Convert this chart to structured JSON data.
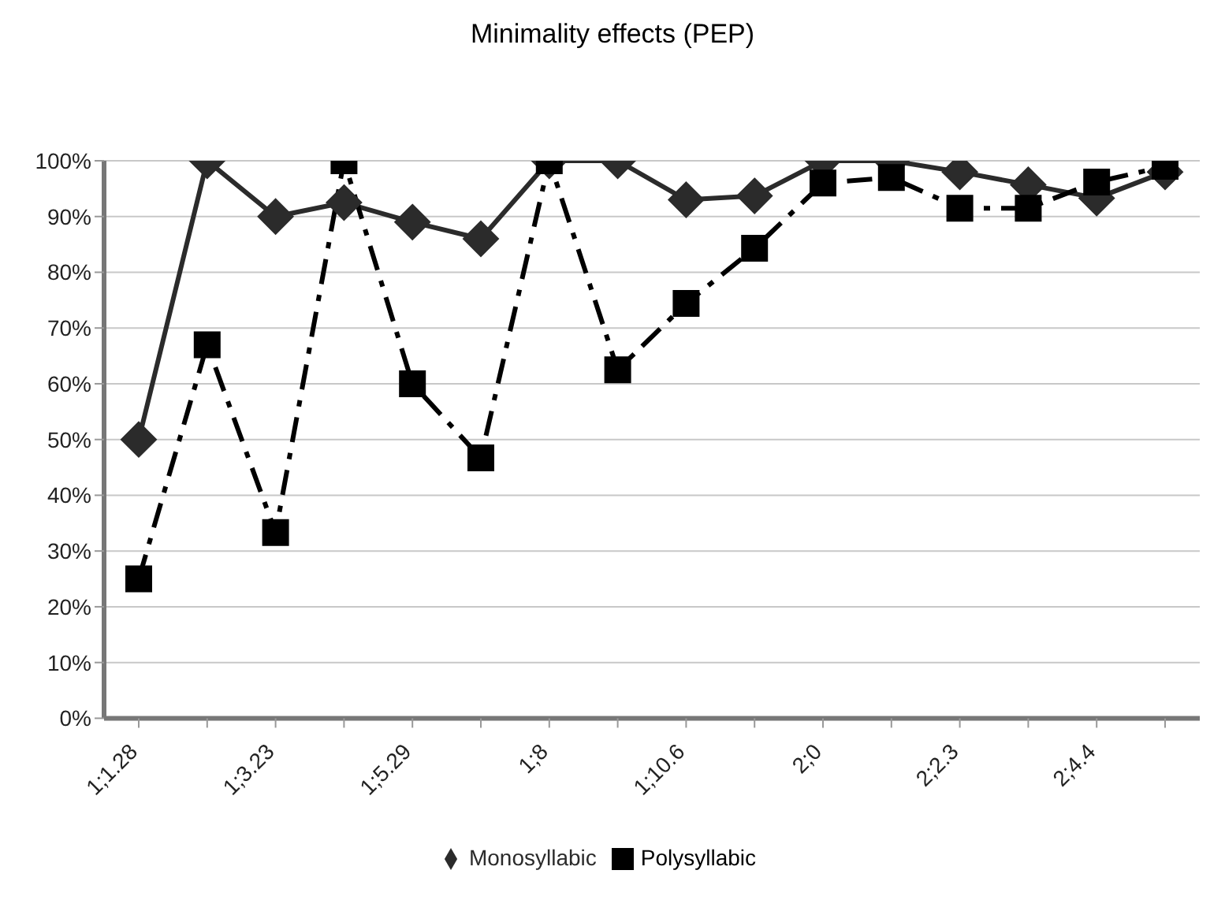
{
  "chart_data": {
    "type": "line",
    "title": "Minimality effects (PEP)",
    "categories": [
      "1;1.28",
      null,
      "1;3.23",
      null,
      "1;5.29",
      null,
      "1;8",
      null,
      "1;10.6",
      null,
      "2;0",
      null,
      "2;2.3",
      null,
      "2;4.4",
      null
    ],
    "series": [
      {
        "name": "Monosyllabic",
        "color": "#2b2b2b",
        "marker": "diamond",
        "line_style": "solid",
        "values": [
          50,
          100,
          90,
          92.5,
          89,
          86,
          100,
          100,
          93,
          93.7,
          100,
          100,
          98,
          95.7,
          93.3,
          98
        ]
      },
      {
        "name": "Polysyllabic",
        "color": "#000000",
        "marker": "square",
        "line_style": "dashed",
        "values": [
          25,
          67,
          33.3,
          100,
          60,
          46.7,
          100,
          62.5,
          74.4,
          84.3,
          96,
          97,
          91.5,
          91.5,
          96.2,
          99
        ]
      }
    ],
    "ylim": [
      0,
      100
    ],
    "yticks": [
      {
        "value": 0,
        "label": "0%"
      },
      {
        "value": 10,
        "label": "10%"
      },
      {
        "value": 20,
        "label": "20%"
      },
      {
        "value": 30,
        "label": "30%"
      },
      {
        "value": 40,
        "label": "40%"
      },
      {
        "value": 50,
        "label": "50%"
      },
      {
        "value": 60,
        "label": "60%"
      },
      {
        "value": 70,
        "label": "70%"
      },
      {
        "value": 80,
        "label": "80%"
      },
      {
        "value": 90,
        "label": "90%"
      },
      {
        "value": 100,
        "label": "100%"
      }
    ],
    "grid": "y",
    "legend": "bottom"
  }
}
